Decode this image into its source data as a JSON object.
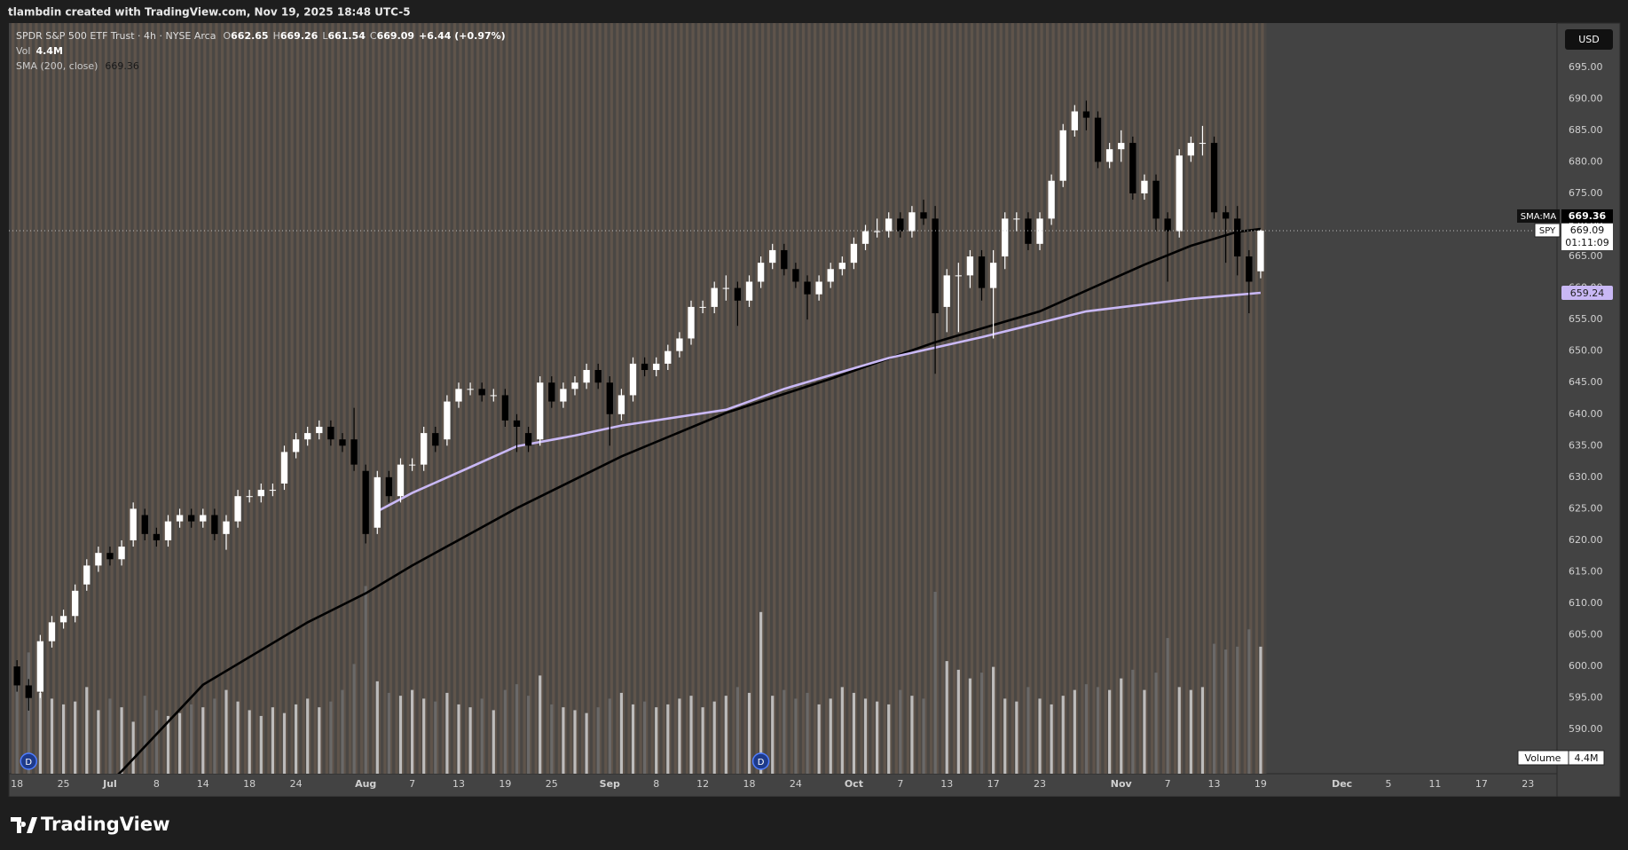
{
  "header": {
    "title": "tlambdin created with TradingView.com, Nov 19, 2025 18:48 UTC-5"
  },
  "footer": {
    "brand": "TradingView"
  },
  "chart_data": {
    "type": "candlestick",
    "symbol": "SPDR S&P 500 ETF Trust · 4h · NYSE Arca",
    "quote": [
      {
        "key": "O",
        "value": 662.65
      },
      {
        "key": "H",
        "value": 669.26
      },
      {
        "key": "L",
        "value": 661.54
      },
      {
        "key": "C",
        "value": 669.09
      }
    ],
    "change": "+6.44 (+0.97%)",
    "currency": "USD",
    "ticker": "SPY",
    "countdown": "01:11:09",
    "up_color": "#ffffff",
    "down_color": "#000000",
    "open": [
      600,
      597,
      596,
      604,
      607,
      608,
      613,
      616,
      618,
      617,
      620,
      624,
      621,
      620,
      623,
      624,
      623,
      624,
      621,
      623,
      627,
      627,
      628,
      629,
      634,
      636,
      637,
      638,
      636,
      636,
      631,
      622,
      630,
      627,
      632,
      632,
      637,
      636,
      642,
      644,
      644,
      643,
      643,
      639,
      637,
      636,
      645,
      642,
      644,
      645,
      647,
      645,
      640,
      643,
      648,
      647,
      648,
      650,
      652,
      657,
      657,
      660,
      660,
      658,
      661,
      664,
      666,
      663,
      661,
      659,
      661,
      663,
      664,
      667,
      669,
      669,
      671,
      669,
      672,
      671,
      657,
      662,
      662,
      665,
      660,
      665,
      671,
      671,
      667,
      671,
      677,
      685,
      688,
      687,
      680,
      682,
      683,
      675,
      677,
      671,
      669,
      681,
      683,
      683,
      672,
      671,
      665,
      662.65
    ],
    "high": [
      601,
      598,
      605,
      608,
      609,
      613,
      617,
      619,
      619,
      620,
      626,
      625,
      622,
      624,
      625,
      625,
      625,
      625,
      624,
      628,
      628,
      629,
      629,
      635,
      637,
      638,
      639,
      639,
      637,
      641,
      632,
      631,
      631,
      633,
      633,
      638,
      638,
      643,
      645,
      645,
      645,
      644,
      644,
      640,
      638,
      646,
      646,
      645,
      646,
      648,
      648,
      646,
      644,
      649,
      649,
      649,
      651,
      653,
      658,
      658,
      661,
      662,
      661,
      662,
      665,
      667,
      667,
      664,
      662,
      662,
      664,
      665,
      668,
      670,
      671,
      672,
      672,
      673,
      674,
      673,
      663,
      664,
      666,
      666,
      666,
      672,
      672,
      672,
      672,
      678,
      686,
      689,
      689.7,
      688,
      683,
      685,
      684,
      678,
      678,
      672,
      682,
      684,
      685.7,
      684,
      673,
      673,
      666,
      669.26
    ],
    "low": [
      596,
      593,
      595,
      603,
      606,
      607,
      612,
      615,
      616,
      616,
      619,
      620,
      619,
      619,
      622,
      622,
      622,
      620,
      618.5,
      622,
      626,
      626,
      627,
      628,
      633,
      635,
      636,
      635,
      634,
      631,
      619.5,
      621,
      626,
      626,
      631,
      631,
      634,
      635,
      641,
      643,
      642,
      642,
      638,
      634,
      634,
      635,
      641,
      641,
      643,
      644,
      644,
      635,
      639,
      642,
      646,
      646,
      647,
      649,
      651,
      656,
      656,
      658,
      654,
      657,
      660,
      663,
      662,
      660,
      655,
      658,
      660,
      662,
      663,
      666,
      668,
      668,
      668,
      668,
      670,
      646.4,
      653,
      653,
      660,
      658,
      652,
      663,
      669,
      666,
      666,
      670,
      676,
      684,
      685,
      679,
      679,
      680,
      674,
      674,
      669,
      661,
      668,
      680,
      681,
      671,
      664,
      662,
      656,
      661.54
    ],
    "close": [
      597,
      595,
      604,
      607,
      608,
      612,
      616,
      618,
      617,
      619,
      625,
      621,
      620,
      623,
      624,
      623,
      624,
      621,
      623,
      627,
      627,
      628,
      628,
      634,
      636,
      637,
      638,
      636,
      635,
      632,
      621,
      630,
      627,
      632,
      632,
      637,
      635,
      642,
      644,
      644,
      643,
      643,
      639,
      638,
      635,
      645,
      642,
      644,
      645,
      647,
      645,
      640,
      643,
      648,
      647,
      648,
      650,
      652,
      657,
      657,
      660,
      660,
      658,
      661,
      664,
      666,
      663,
      661,
      659,
      661,
      663,
      664,
      667,
      669,
      669,
      671,
      669,
      672,
      671,
      656,
      662,
      662,
      665,
      660,
      664,
      671,
      671,
      667,
      671,
      677,
      685,
      688,
      687,
      680,
      682,
      683,
      675,
      677,
      671,
      669,
      681,
      683,
      683,
      672,
      671,
      665,
      661,
      669.09
    ],
    "overlays": [
      {
        "name": "SMA (200, close)",
        "label": "SMA:MA",
        "color": "#000000",
        "x": [
          7,
          9,
          16,
          25,
          30,
          34,
          43,
          52,
          61,
          70,
          79,
          88,
          97,
          101,
          105,
          107
        ],
        "values": [
          580,
          583.4,
          597.1,
          607,
          611.6,
          616,
          625.1,
          633.3,
          640.2,
          645.6,
          651.4,
          656.3,
          663.7,
          666.7,
          668.9,
          669.36
        ]
      },
      {
        "color": "#c9b8f5",
        "x": [
          31,
          34,
          39,
          43,
          48,
          52,
          61,
          66,
          75,
          83,
          92,
          101,
          107
        ],
        "values": [
          624.6,
          627.5,
          631.6,
          634.9,
          636.6,
          638.2,
          640.7,
          644,
          648.9,
          652.2,
          656.3,
          658.3,
          659.24
        ]
      }
    ],
    "volume": {
      "name": "Volume",
      "label": "Vol",
      "current_label": "4.4M",
      "ylim": [
        0,
        26
      ],
      "up_color": "#d0d0d0",
      "down_color": "#6e6e6e",
      "values": [
        3.1,
        4.2,
        2.8,
        2.6,
        2.4,
        2.5,
        3.0,
        2.2,
        2.6,
        2.3,
        1.8,
        2.7,
        2.2,
        2.0,
        2.1,
        2.4,
        2.3,
        2.6,
        2.9,
        2.5,
        2.2,
        2.0,
        2.3,
        2.1,
        2.4,
        2.6,
        2.3,
        2.5,
        2.9,
        3.8,
        6.5,
        3.2,
        2.8,
        2.7,
        2.9,
        2.6,
        2.5,
        2.8,
        2.4,
        2.3,
        2.6,
        2.2,
        2.9,
        3.1,
        2.7,
        3.4,
        2.4,
        2.3,
        2.2,
        2.1,
        2.3,
        2.6,
        2.8,
        2.4,
        2.5,
        2.3,
        2.4,
        2.6,
        2.7,
        2.3,
        2.5,
        2.7,
        3.0,
        2.8,
        5.6,
        2.7,
        2.9,
        2.6,
        2.8,
        2.4,
        2.6,
        3.0,
        2.8,
        2.6,
        2.5,
        2.4,
        2.9,
        2.7,
        2.6,
        6.3,
        3.9,
        3.6,
        3.3,
        3.5,
        3.7,
        2.6,
        2.5,
        3.0,
        2.6,
        2.4,
        2.7,
        2.9,
        3.1,
        3.0,
        2.9,
        3.3,
        3.6,
        2.9,
        3.5,
        4.7,
        3.0,
        2.9,
        3.0,
        4.5,
        4.3,
        4.4,
        5.0,
        4.4
      ]
    },
    "events": [
      {
        "x": 1,
        "label": "D"
      },
      {
        "x": 64,
        "label": "D"
      }
    ],
    "xlim": [
      -0.7,
      132.5
    ],
    "xticks": [
      {
        "value": 0,
        "label": "18"
      },
      {
        "value": 4,
        "label": "25"
      },
      {
        "value": 8,
        "label": "Jul"
      },
      {
        "value": 12,
        "label": "8"
      },
      {
        "value": 16,
        "label": "14"
      },
      {
        "value": 20,
        "label": "18"
      },
      {
        "value": 24,
        "label": "24"
      },
      {
        "value": 30,
        "label": "Aug"
      },
      {
        "value": 34,
        "label": "7"
      },
      {
        "value": 38,
        "label": "13"
      },
      {
        "value": 42,
        "label": "19"
      },
      {
        "value": 46,
        "label": "25"
      },
      {
        "value": 51,
        "label": "Sep"
      },
      {
        "value": 55,
        "label": "8"
      },
      {
        "value": 59,
        "label": "12"
      },
      {
        "value": 63,
        "label": "18"
      },
      {
        "value": 67,
        "label": "24"
      },
      {
        "value": 72,
        "label": "Oct"
      },
      {
        "value": 76,
        "label": "7"
      },
      {
        "value": 80,
        "label": "13"
      },
      {
        "value": 84,
        "label": "17"
      },
      {
        "value": 88,
        "label": "23"
      },
      {
        "value": 95,
        "label": "Nov"
      },
      {
        "value": 99,
        "label": "7"
      },
      {
        "value": 103,
        "label": "13"
      },
      {
        "value": 107,
        "label": "19"
      },
      {
        "value": 114,
        "label": "Dec"
      },
      {
        "value": 118,
        "label": "5"
      },
      {
        "value": 122,
        "label": "11"
      },
      {
        "value": 126,
        "label": "17"
      },
      {
        "value": 130,
        "label": "23"
      }
    ],
    "ylim": [
      583,
      702
    ],
    "yticks": [
      {
        "value": 590,
        "label": "590.00"
      },
      {
        "value": 595,
        "label": "595.00"
      },
      {
        "value": 600,
        "label": "600.00"
      },
      {
        "value": 605,
        "label": "605.00"
      },
      {
        "value": 610,
        "label": "610.00"
      },
      {
        "value": 615,
        "label": "615.00"
      },
      {
        "value": 620,
        "label": "620.00"
      },
      {
        "value": 625,
        "label": "625.00"
      },
      {
        "value": 630,
        "label": "630.00"
      },
      {
        "value": 635,
        "label": "635.00"
      },
      {
        "value": 640,
        "label": "640.00"
      },
      {
        "value": 645,
        "label": "645.00"
      },
      {
        "value": 650,
        "label": "650.00"
      },
      {
        "value": 655,
        "label": "655.00"
      },
      {
        "value": 660,
        "label": "660.00"
      },
      {
        "value": 665,
        "label": "665.00"
      },
      {
        "value": 670,
        "label": "670.00"
      },
      {
        "value": 675,
        "label": "675.00"
      },
      {
        "value": 680,
        "label": "680.00"
      },
      {
        "value": 685,
        "label": "685.00"
      },
      {
        "value": 690,
        "label": "690.00"
      },
      {
        "value": 695,
        "label": "695.00"
      }
    ],
    "grid": false
  }
}
